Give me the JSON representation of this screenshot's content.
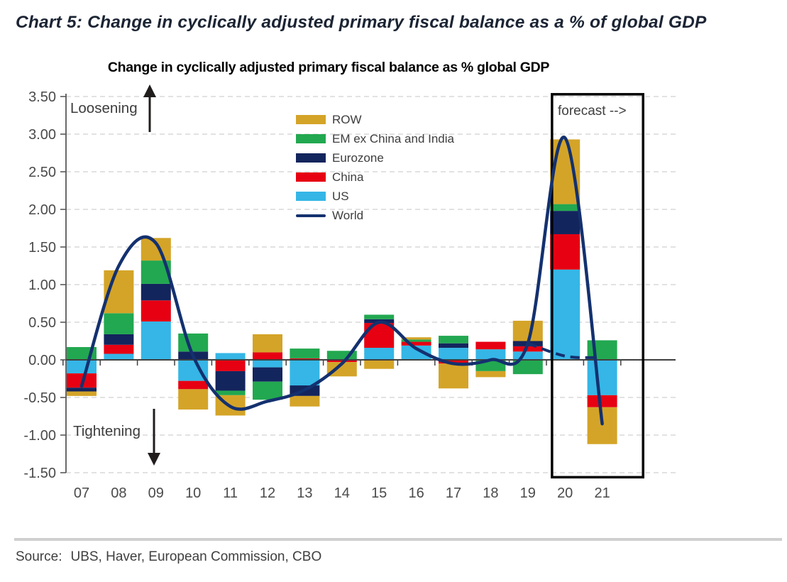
{
  "page_title": "Chart 5: Change in cyclically adjusted primary fiscal balance as a % of global GDP",
  "chart": {
    "title": "Change in cyclically adjusted primary fiscal balance as % global GDP",
    "annotations": {
      "loosening": "Loosening",
      "tightening": "Tightening",
      "forecast": "forecast -->"
    }
  },
  "source": {
    "label": "Source:",
    "text": "UBS, Haver, European Commission, CBO"
  },
  "chart_data": {
    "type": "bar",
    "subtype": "stacked-bars-with-line-overlay",
    "title": "Change in cyclically adjusted primary fiscal balance as % global GDP",
    "xlabel": "",
    "ylabel": "",
    "categories": [
      "07",
      "08",
      "09",
      "10",
      "11",
      "12",
      "13",
      "14",
      "15",
      "16",
      "17",
      "18",
      "19",
      "20",
      "21"
    ],
    "y_ticks": [
      "3.50",
      "3.00",
      "2.50",
      "2.00",
      "1.50",
      "1.00",
      "0.50",
      "0.00",
      "-0.50",
      "-1.00",
      "-1.50"
    ],
    "ylim": [
      -1.5,
      3.5
    ],
    "grid": "dashed-horizontal",
    "legend_position": "upper-center-inside",
    "series": [
      {
        "name": "ROW",
        "color": "#D4A428",
        "values": [
          -0.06,
          0.57,
          0.3,
          -0.27,
          -0.27,
          0.24,
          -0.14,
          -0.19,
          -0.12,
          0.03,
          -0.33,
          -0.08,
          0.27,
          0.86,
          -0.49
        ]
      },
      {
        "name": "EM ex China and India",
        "color": "#22A850",
        "values": [
          0.17,
          0.28,
          0.31,
          0.24,
          -0.06,
          -0.24,
          0.13,
          0.12,
          0.06,
          0.03,
          0.1,
          -0.15,
          -0.19,
          0.09,
          0.26
        ]
      },
      {
        "name": "Eurozone",
        "color": "#13255D",
        "values": [
          -0.05,
          0.14,
          0.22,
          0.11,
          -0.26,
          -0.19,
          -0.14,
          0.0,
          0.05,
          0.0,
          0.06,
          0.0,
          0.07,
          0.31,
          0.0
        ]
      },
      {
        "name": "China",
        "color": "#E60012",
        "values": [
          -0.19,
          0.12,
          0.28,
          -0.11,
          -0.15,
          0.1,
          0.02,
          -0.03,
          0.33,
          0.05,
          -0.05,
          0.1,
          0.07,
          0.47,
          -0.16
        ]
      },
      {
        "name": "US",
        "color": "#35B6E6",
        "values": [
          -0.18,
          0.08,
          0.51,
          -0.28,
          0.09,
          -0.1,
          -0.34,
          0.0,
          0.16,
          0.19,
          0.16,
          0.14,
          0.11,
          1.2,
          -0.47
        ]
      }
    ],
    "line_series": {
      "name": "World",
      "color": "#14316F",
      "style": "solid-smooth",
      "values": [
        -0.35,
        1.25,
        1.55,
        0.05,
        -0.62,
        -0.55,
        -0.4,
        -0.05,
        0.5,
        0.15,
        -0.05,
        0.0,
        0.22,
        2.95,
        -0.85
      ]
    },
    "forecast_dashed_line": {
      "name": "World (pre-stimulus forecast path)",
      "color": "#14316F",
      "x_index": [
        12,
        13,
        13.85
      ],
      "values": [
        0.22,
        0.05,
        0.03
      ]
    },
    "forecast_box": {
      "label": "forecast -->",
      "left_index": 12.65,
      "right_index": 15.1,
      "top_value": 3.53,
      "bottom_value": -1.56
    }
  }
}
